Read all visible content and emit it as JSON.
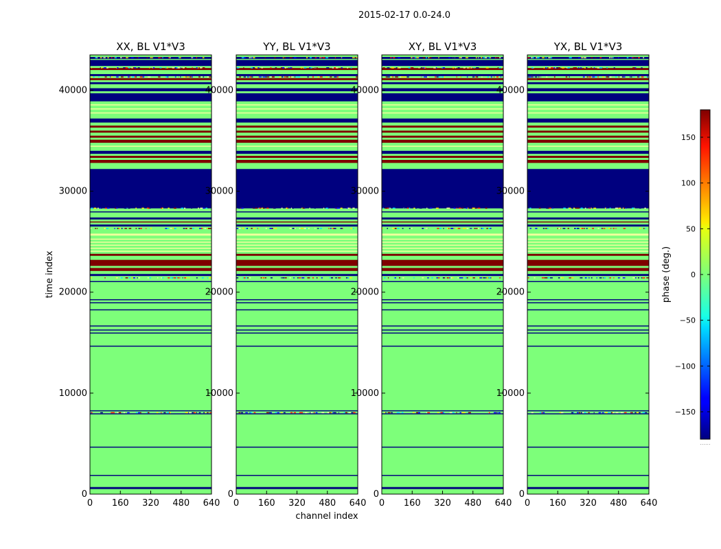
{
  "figure": {
    "suptitle": "2015-02-17 0.0-24.0"
  },
  "colors": {
    "background_phase": "#7dff7a",
    "dark_blue": "#00007f",
    "dark_red": "#7f0000",
    "light_yellow": "#f3ff9e",
    "colormap": "jet"
  },
  "chart_data": [
    {
      "type": "heatmap",
      "title": "XX, BL V1*V3",
      "xlabel": "",
      "ylabel": "time index",
      "xlim": [
        0,
        640
      ],
      "ylim": [
        0,
        43500
      ],
      "xticks": [
        "0",
        "160",
        "320",
        "480",
        "640"
      ],
      "yticks": [
        "0",
        "10000",
        "20000",
        "30000",
        "40000"
      ]
    },
    {
      "type": "heatmap",
      "title": "YY, BL V1*V3",
      "xlabel": "channel index",
      "ylabel": "",
      "xlim": [
        0,
        640
      ],
      "ylim": [
        0,
        43500
      ],
      "xticks": [
        "0",
        "160",
        "320",
        "480",
        "640"
      ],
      "yticks": [
        "0",
        "10000",
        "20000",
        "30000",
        "40000"
      ]
    },
    {
      "type": "heatmap",
      "title": "XY, BL V1*V3",
      "xlabel": "",
      "ylabel": "",
      "xlim": [
        0,
        640
      ],
      "ylim": [
        0,
        43500
      ],
      "xticks": [
        "0",
        "160",
        "320",
        "480",
        "640"
      ],
      "yticks": [
        "0",
        "10000",
        "20000",
        "30000",
        "40000"
      ]
    },
    {
      "type": "heatmap",
      "title": "YX, BL V1*V3",
      "xlabel": "",
      "ylabel": "",
      "xlim": [
        0,
        640
      ],
      "ylim": [
        0,
        43500
      ],
      "xticks": [
        "0",
        "160",
        "320",
        "480",
        "640"
      ],
      "yticks": [
        "0",
        "10000",
        "20000",
        "30000",
        "40000"
      ]
    }
  ],
  "row_bands": [
    {
      "y0": 500,
      "y1": 700,
      "color": "#00007f"
    },
    {
      "y0": 1800,
      "y1": 1900,
      "color": "#00007f"
    },
    {
      "y0": 4600,
      "y1": 4700,
      "color": "#00007f"
    },
    {
      "y0": 7900,
      "y1": 8000,
      "color": "#00007f"
    },
    {
      "y0": 8200,
      "y1": 8300,
      "color": "#00007f"
    },
    {
      "y0": 14600,
      "y1": 14700,
      "color": "#00007f"
    },
    {
      "y0": 15900,
      "y1": 16000,
      "color": "#00007f"
    },
    {
      "y0": 16200,
      "y1": 16300,
      "color": "#00007f"
    },
    {
      "y0": 16600,
      "y1": 16700,
      "color": "#00007f"
    },
    {
      "y0": 18200,
      "y1": 18300,
      "color": "#00007f"
    },
    {
      "y0": 18900,
      "y1": 19000,
      "color": "#00007f"
    },
    {
      "y0": 19200,
      "y1": 19300,
      "color": "#00007f"
    },
    {
      "y0": 21000,
      "y1": 21100,
      "color": "#00007f"
    },
    {
      "y0": 21600,
      "y1": 21800,
      "color": "#00007f"
    },
    {
      "y0": 22100,
      "y1": 22400,
      "color": "#7f0000"
    },
    {
      "y0": 22600,
      "y1": 23200,
      "color": "#7f0000"
    },
    {
      "y0": 23600,
      "y1": 23800,
      "color": "#7f0000"
    },
    {
      "y0": 24000,
      "y1": 24100,
      "color": "#f3ff9e"
    },
    {
      "y0": 24300,
      "y1": 24400,
      "color": "#f3ff9e"
    },
    {
      "y0": 24600,
      "y1": 24700,
      "color": "#f3ff9e"
    },
    {
      "y0": 24900,
      "y1": 25000,
      "color": "#f3ff9e"
    },
    {
      "y0": 25200,
      "y1": 25300,
      "color": "#f3ff9e"
    },
    {
      "y0": 25600,
      "y1": 25800,
      "color": "#f3ff9e"
    },
    {
      "y0": 26500,
      "y1": 26700,
      "color": "#00007f"
    },
    {
      "y0": 26900,
      "y1": 27000,
      "color": "#7f0000"
    },
    {
      "y0": 27200,
      "y1": 27400,
      "color": "#00007f"
    },
    {
      "y0": 27900,
      "y1": 28000,
      "color": "#00007f"
    },
    {
      "y0": 28300,
      "y1": 32200,
      "color": "#00007f"
    },
    {
      "y0": 32800,
      "y1": 33100,
      "color": "#7f0000"
    },
    {
      "y0": 33300,
      "y1": 33500,
      "color": "#7f0000"
    },
    {
      "y0": 33700,
      "y1": 34000,
      "color": "#00007f"
    },
    {
      "y0": 34400,
      "y1": 34500,
      "color": "#f3ff9e"
    },
    {
      "y0": 34800,
      "y1": 35100,
      "color": "#7f0000"
    },
    {
      "y0": 35300,
      "y1": 35500,
      "color": "#7f0000"
    },
    {
      "y0": 35800,
      "y1": 36000,
      "color": "#7f0000"
    },
    {
      "y0": 36300,
      "y1": 36500,
      "color": "#7f0000"
    },
    {
      "y0": 36800,
      "y1": 37200,
      "color": "#00007f"
    },
    {
      "y0": 37700,
      "y1": 37800,
      "color": "#f3ff9e"
    },
    {
      "y0": 38100,
      "y1": 38200,
      "color": "#f3ff9e"
    },
    {
      "y0": 38500,
      "y1": 38600,
      "color": "#f3ff9e"
    },
    {
      "y0": 38900,
      "y1": 39700,
      "color": "#00007f"
    },
    {
      "y0": 39900,
      "y1": 40200,
      "color": "#00007f"
    },
    {
      "y0": 40600,
      "y1": 40800,
      "color": "#00007f"
    },
    {
      "y0": 41000,
      "y1": 41200,
      "color": "#7f0000"
    },
    {
      "y0": 41400,
      "y1": 41600,
      "color": "#00007f"
    },
    {
      "y0": 42000,
      "y1": 42200,
      "color": "#7f0000"
    },
    {
      "y0": 42400,
      "y1": 43000,
      "color": "#00007f"
    },
    {
      "y0": 43100,
      "y1": 43300,
      "color": "#00007f"
    }
  ],
  "speckle_rows": [
    8050,
    21400,
    26300,
    28300,
    41300,
    42200,
    43200
  ],
  "colorbar": {
    "label": "phase (deg.)",
    "range": [
      -180,
      180
    ],
    "ticks": [
      "150",
      "100",
      "50",
      "0",
      "−50",
      "−100",
      "−150"
    ],
    "tick_values": [
      150,
      100,
      50,
      0,
      -50,
      -100,
      -150
    ],
    "extra_label": "......"
  }
}
